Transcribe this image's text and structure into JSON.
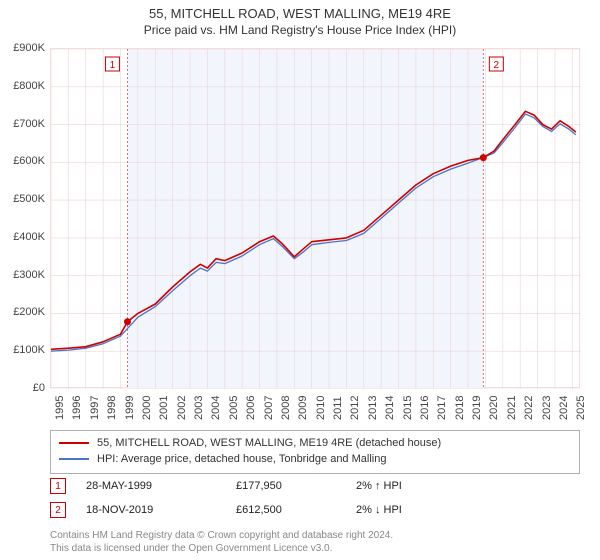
{
  "title_line1": "55, MITCHELL ROAD, WEST MALLING, ME19 4RE",
  "title_line2": "Price paid vs. HM Land Registry's House Price Index (HPI)",
  "chart": {
    "type": "line",
    "plot_bg": "#ffffff",
    "shaded_bg": "#f2f5fc",
    "border_color": "#f7dcdc",
    "x_start": 1995,
    "x_end": 2025.5,
    "y_min": 0,
    "y_max": 900000,
    "y_ticks": [
      0,
      100000,
      200000,
      300000,
      400000,
      500000,
      600000,
      700000,
      800000,
      900000
    ],
    "y_tick_labels": [
      "£0",
      "£100K",
      "£200K",
      "£300K",
      "£400K",
      "£500K",
      "£600K",
      "£700K",
      "£800K",
      "£900K"
    ],
    "x_ticks": [
      1995,
      1996,
      1997,
      1998,
      1999,
      2000,
      2001,
      2002,
      2003,
      2004,
      2005,
      2006,
      2007,
      2008,
      2009,
      2010,
      2011,
      2012,
      2013,
      2014,
      2015,
      2016,
      2017,
      2018,
      2019,
      2020,
      2021,
      2022,
      2023,
      2024,
      2025
    ],
    "gridline_color": "#ebd6d6",
    "vline_color": "#d46a6a",
    "shaded_from": 1999.4,
    "shaded_to": 2019.88,
    "series": [
      {
        "name": "property",
        "label": "55, MITCHELL ROAD, WEST MALLING, ME19 4RE (detached house)",
        "color": "#cc0000",
        "width": 1.6,
        "points": [
          [
            1995,
            105000
          ],
          [
            1996,
            108000
          ],
          [
            1997,
            112000
          ],
          [
            1998,
            125000
          ],
          [
            1999,
            145000
          ],
          [
            1999.4,
            177950
          ],
          [
            2000,
            200000
          ],
          [
            2001,
            225000
          ],
          [
            2002,
            270000
          ],
          [
            2003,
            310000
          ],
          [
            2003.6,
            330000
          ],
          [
            2004,
            320000
          ],
          [
            2004.5,
            345000
          ],
          [
            2005,
            340000
          ],
          [
            2006,
            360000
          ],
          [
            2007,
            390000
          ],
          [
            2007.8,
            405000
          ],
          [
            2008.3,
            385000
          ],
          [
            2009,
            350000
          ],
          [
            2009.5,
            370000
          ],
          [
            2010,
            390000
          ],
          [
            2011,
            395000
          ],
          [
            2012,
            400000
          ],
          [
            2013,
            420000
          ],
          [
            2014,
            460000
          ],
          [
            2015,
            500000
          ],
          [
            2016,
            540000
          ],
          [
            2017,
            570000
          ],
          [
            2018,
            590000
          ],
          [
            2019,
            605000
          ],
          [
            2019.88,
            612500
          ],
          [
            2020.5,
            630000
          ],
          [
            2021,
            660000
          ],
          [
            2021.7,
            700000
          ],
          [
            2022.3,
            735000
          ],
          [
            2022.8,
            725000
          ],
          [
            2023.3,
            700000
          ],
          [
            2023.8,
            688000
          ],
          [
            2024.3,
            710000
          ],
          [
            2024.8,
            695000
          ],
          [
            2025.2,
            680000
          ]
        ]
      },
      {
        "name": "hpi",
        "label": "HPI: Average price, detached house, Tonbridge and Malling",
        "color": "#4a74c9",
        "width": 1.3,
        "points": [
          [
            1995,
            100000
          ],
          [
            1996,
            103000
          ],
          [
            1997,
            108000
          ],
          [
            1998,
            120000
          ],
          [
            1999,
            140000
          ],
          [
            2000,
            190000
          ],
          [
            2001,
            218000
          ],
          [
            2002,
            260000
          ],
          [
            2003,
            300000
          ],
          [
            2003.6,
            320000
          ],
          [
            2004,
            312000
          ],
          [
            2004.5,
            335000
          ],
          [
            2005,
            332000
          ],
          [
            2006,
            352000
          ],
          [
            2007,
            382000
          ],
          [
            2007.8,
            398000
          ],
          [
            2008.3,
            378000
          ],
          [
            2009,
            345000
          ],
          [
            2009.5,
            362000
          ],
          [
            2010,
            382000
          ],
          [
            2011,
            388000
          ],
          [
            2012,
            393000
          ],
          [
            2013,
            412000
          ],
          [
            2014,
            452000
          ],
          [
            2015,
            492000
          ],
          [
            2016,
            532000
          ],
          [
            2017,
            562000
          ],
          [
            2018,
            582000
          ],
          [
            2019,
            598000
          ],
          [
            2020,
            615000
          ],
          [
            2020.5,
            625000
          ],
          [
            2021,
            652000
          ],
          [
            2021.7,
            692000
          ],
          [
            2022.3,
            728000
          ],
          [
            2022.8,
            718000
          ],
          [
            2023.3,
            695000
          ],
          [
            2023.8,
            682000
          ],
          [
            2024.3,
            702000
          ],
          [
            2024.8,
            688000
          ],
          [
            2025.2,
            673000
          ]
        ]
      }
    ],
    "sale_markers": [
      {
        "n": "1",
        "x": 1999.4,
        "y": 177950
      },
      {
        "n": "2",
        "x": 2019.88,
        "y": 612500
      }
    ],
    "marker_dot_color": "#cc0000",
    "marker_dot_radius": 3.5
  },
  "legend": {
    "series1_label": "55, MITCHELL ROAD, WEST MALLING, ME19 4RE (detached house)",
    "series2_label": "HPI: Average price, detached house, Tonbridge and Malling"
  },
  "sales": [
    {
      "n": "1",
      "date": "28-MAY-1999",
      "price": "£177,950",
      "hpi": "2% ↑ HPI"
    },
    {
      "n": "2",
      "date": "18-NOV-2019",
      "price": "£612,500",
      "hpi": "2% ↓ HPI"
    }
  ],
  "footer_line1": "Contains HM Land Registry data © Crown copyright and database right 2024.",
  "footer_line2": "This data is licensed under the Open Government Licence v3.0."
}
